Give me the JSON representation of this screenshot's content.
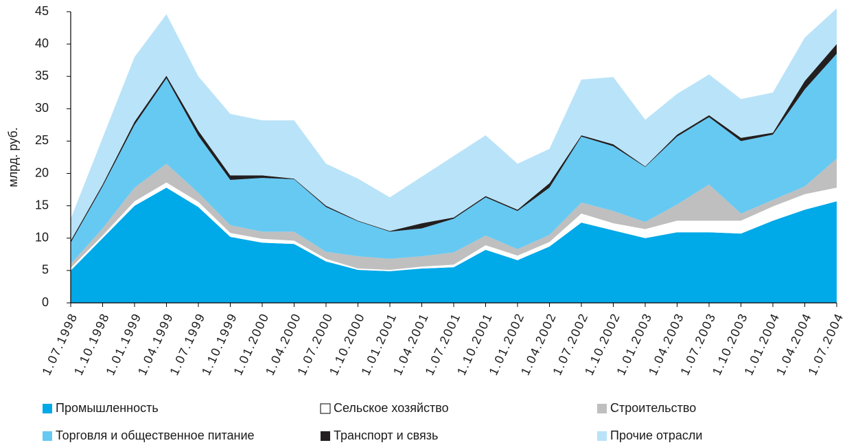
{
  "chart_data": {
    "type": "stacked_area",
    "y_label": "млрд. руб.",
    "categories": [
      "1.07.1998",
      "1.10.1998",
      "1.01.1999",
      "1.04.1999",
      "1.07.1999",
      "1.10.1999",
      "1.01.2000",
      "1.04.2000",
      "1.07.2000",
      "1.10.2000",
      "1.01.2001",
      "1.04.2001",
      "1.07.2001",
      "1.10.2001",
      "1.01.2002",
      "1.04.2002",
      "1.07.2002",
      "1.10.2002",
      "1.01.2003",
      "1.04.2003",
      "1.07.2003",
      "1.10.2003",
      "1.01.2004",
      "1.04.2004",
      "1.07.2004"
    ],
    "series": [
      {
        "name": "Промышленность",
        "color": "#00a9e8",
        "values": [
          5,
          10,
          15,
          17.8,
          14.8,
          10.2,
          9.3,
          9.1,
          6.4,
          5.1,
          4.9,
          5.3,
          5.5,
          8.2,
          6.6,
          8.7,
          12.4,
          11.2,
          10,
          10.9,
          10.9,
          10.7,
          12.7,
          14.4,
          15.7
        ]
      },
      {
        "name": "Сельское хозяйство",
        "color": "#ffffff",
        "values": [
          0.4,
          0.4,
          0.7,
          0.8,
          0.8,
          0.6,
          0.6,
          0.5,
          0.4,
          0.2,
          0.2,
          0.3,
          0.4,
          0.7,
          0.7,
          0.7,
          1.4,
          1.1,
          1.4,
          1.8,
          1.8,
          2.0,
          2.2,
          2.4,
          2.1
        ]
      },
      {
        "name": "Строительство",
        "color": "#bfbfbf",
        "values": [
          0.6,
          1.1,
          2.1,
          2.9,
          1.4,
          1.2,
          1.1,
          1.4,
          1.1,
          1.9,
          1.7,
          1.6,
          1.9,
          1.5,
          1.0,
          1.1,
          1.7,
          1.9,
          1.1,
          2.5,
          5.6,
          1.1,
          1.0,
          1.2,
          4.5
        ]
      },
      {
        "name": "Торговля и общественное питание",
        "color": "#66c9f2",
        "values": [
          3.3,
          6.5,
          9.7,
          13.2,
          8.8,
          7.0,
          8.3,
          8.1,
          6.9,
          5.4,
          4.2,
          4.3,
          5.2,
          5.9,
          5.9,
          7.3,
          10.2,
          10.0,
          8.5,
          10.5,
          10.4,
          11.2,
          10.1,
          15.0,
          16.2
        ]
      },
      {
        "name": "Транспорт и связь",
        "color": "#231f20",
        "values": [
          0.3,
          0.3,
          0.5,
          0.4,
          0.8,
          0.7,
          0.4,
          0.1,
          0.2,
          0.1,
          0.1,
          0.8,
          0.2,
          0.2,
          0.2,
          0.7,
          0.2,
          0.3,
          0.1,
          0.3,
          0.3,
          0.5,
          0.3,
          1.3,
          1.5
        ]
      },
      {
        "name": "Прочие отрасли",
        "color": "#b9e3f8",
        "values": [
          3.4,
          7.2,
          10,
          9.5,
          8.4,
          9.5,
          8.5,
          9,
          6.5,
          6.5,
          5.2,
          7.2,
          9.5,
          9.4,
          7.1,
          5.3,
          8.6,
          10.4,
          7.2,
          6.3,
          6.3,
          6,
          6.2,
          6.7,
          5.5
        ]
      }
    ],
    "ylim": [
      0,
      45
    ],
    "yticks": [
      0,
      5,
      10,
      15,
      20,
      25,
      30,
      35,
      40,
      45
    ]
  }
}
